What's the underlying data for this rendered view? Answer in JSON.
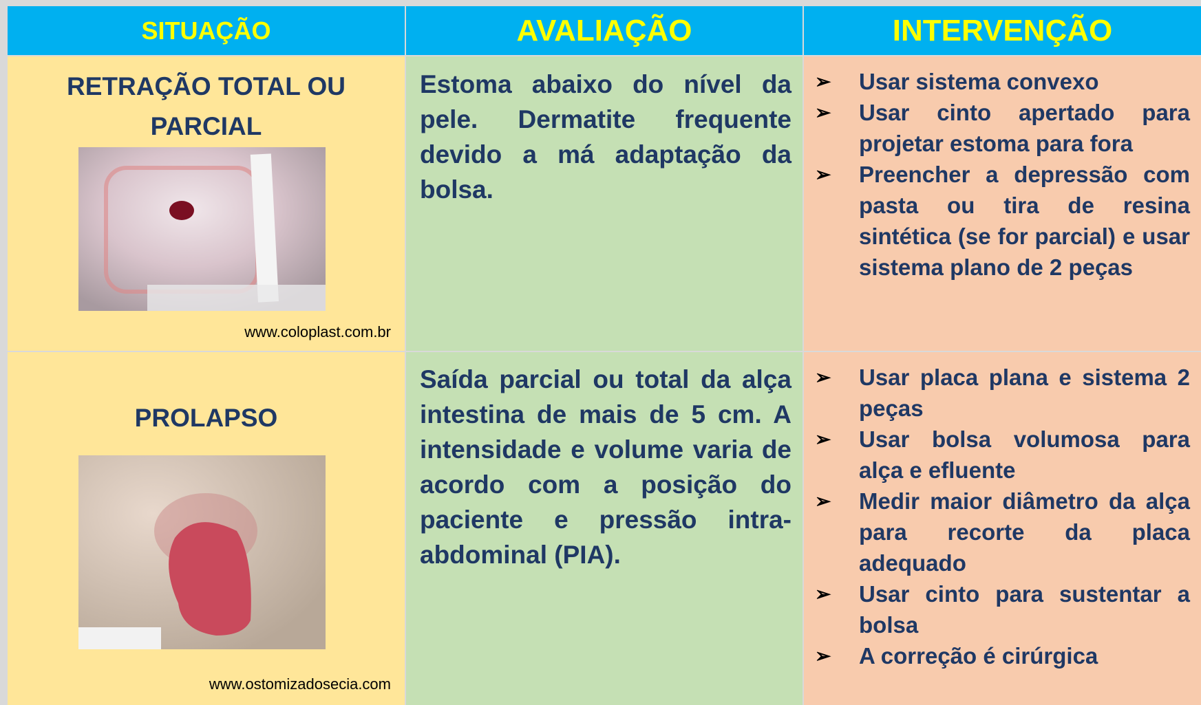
{
  "table": {
    "header": [
      "SITUAÇÃO",
      "AVALIAÇÃO",
      "INTERVENÇÃO"
    ],
    "rows": [
      {
        "situacao": "RETRAÇÃO TOTAL OU PARCIAL",
        "source": "www.coloplast.com.br",
        "avaliacao": "Estoma abaixo do nível da pele. Dermatite frequente devido a má adaptação da bolsa.",
        "intervencao": [
          "Usar sistema convexo",
          "Usar cinto apertado para projetar estoma para fora",
          "Preencher a depressão com pasta ou tira de resina sintética (se for parcial) e usar sistema plano de 2 peças"
        ]
      },
      {
        "situacao": "PROLAPSO",
        "source": "www.ostomizadosecia.com",
        "avaliacao": "Saída parcial ou total da alça intestina de mais de 5 cm. A intensidade e volume varia de acordo com a posição do paciente e pressão intra-abdominal (PIA).",
        "intervencao": [
          "Usar placa plana e sistema 2 peças",
          "Usar bolsa volumosa para alça e efluente",
          "Medir maior diâmetro da alça para recorte da placa adequado",
          "Usar cinto para sustentar a bolsa",
          "A correção é cirúrgica"
        ]
      }
    ]
  }
}
